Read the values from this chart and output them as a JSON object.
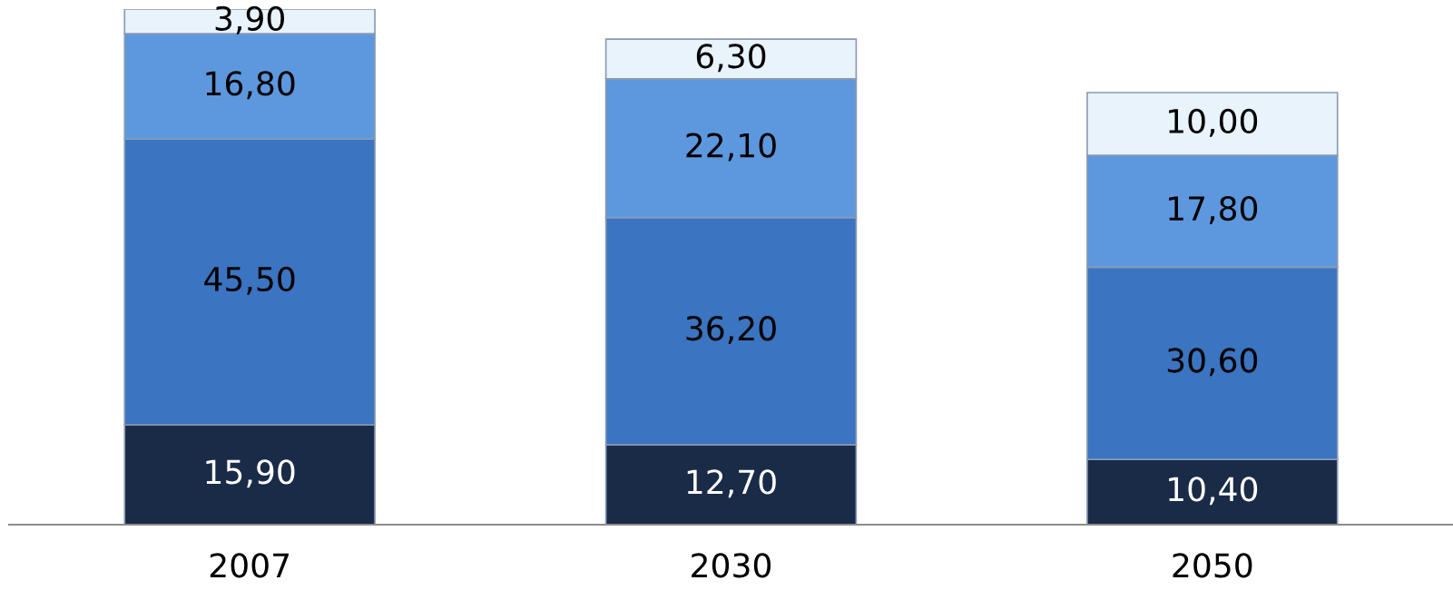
{
  "chart_data": {
    "type": "bar",
    "stacked": true,
    "categories": [
      "2007",
      "2030",
      "2050"
    ],
    "series": [
      {
        "color": "#1a2b48",
        "values": [
          15.9,
          12.7,
          10.4
        ],
        "value_labels": [
          "15,90",
          "12,70",
          "10,40"
        ]
      },
      {
        "color": "#3b74c0",
        "values": [
          45.5,
          36.2,
          30.6
        ],
        "value_labels": [
          "45,50",
          "36,20",
          "30,60"
        ]
      },
      {
        "color": "#5d98de",
        "values": [
          16.8,
          22.1,
          17.8
        ],
        "value_labels": [
          "16,80",
          "22,10",
          "17,80"
        ]
      },
      {
        "color": "#e9f3fc",
        "values": [
          3.9,
          6.3,
          10.0
        ],
        "value_labels": [
          "3,90",
          "6,30",
          "10,00"
        ]
      }
    ],
    "grid": false,
    "legend": false
  }
}
